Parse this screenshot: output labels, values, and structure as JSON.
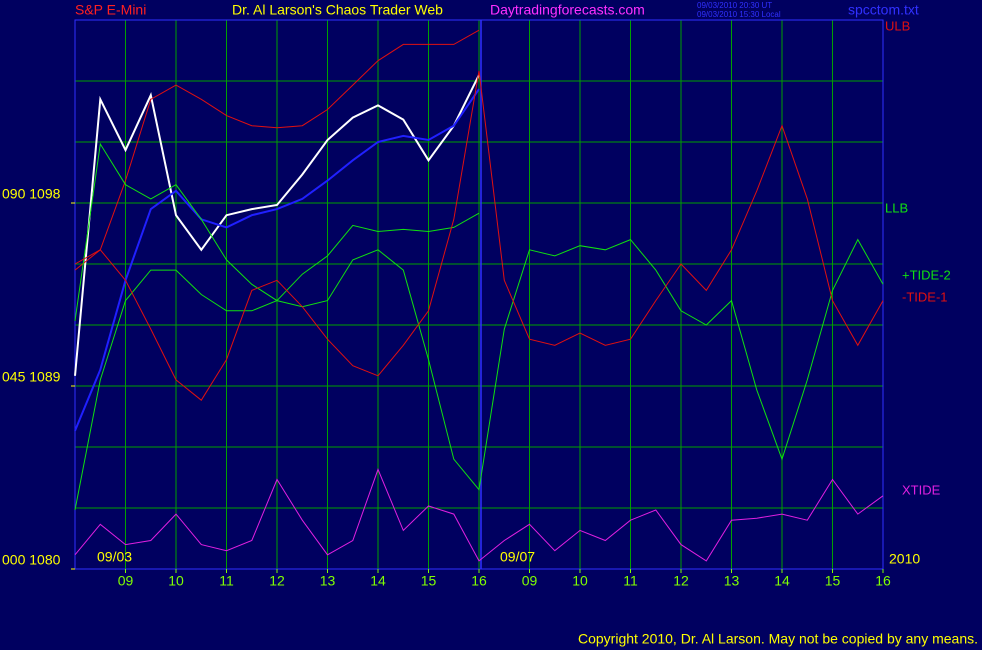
{
  "chart_data": {
    "type": "line",
    "symbol": "S&P E-Mini",
    "title": "Dr. Al Larson's Chaos Trader Web",
    "website": "Daytradingforecasts.com",
    "timestamps": [
      "09/03/2010 20:30 UT",
      "09/03/2010 15:30 Local"
    ],
    "file": "spcctom.txt",
    "copyright": "Copyright 2010, Dr. Al Larson. May not be copied by any means.",
    "annotations": [
      "09/03",
      "09/07",
      "2010"
    ],
    "xlim": [
      0,
      16
    ],
    "xticks": [
      {
        "value": 1,
        "label": "09"
      },
      {
        "value": 2,
        "label": "10"
      },
      {
        "value": 3,
        "label": "11"
      },
      {
        "value": 4,
        "label": "12"
      },
      {
        "value": 5,
        "label": "13"
      },
      {
        "value": 6,
        "label": "14"
      },
      {
        "value": 7,
        "label": "15"
      },
      {
        "value": 8,
        "label": "16"
      },
      {
        "value": 9,
        "label": "09"
      },
      {
        "value": 10,
        "label": "10"
      },
      {
        "value": 11,
        "label": "11"
      },
      {
        "value": 12,
        "label": "12"
      },
      {
        "value": 13,
        "label": "13"
      },
      {
        "value": 14,
        "label": "14"
      },
      {
        "value": 15,
        "label": "15"
      },
      {
        "value": 16,
        "label": "16"
      }
    ],
    "ylim": [
      1080,
      1107
    ],
    "yticks": [
      {
        "value": 1080,
        "label": "000 1080"
      },
      {
        "value": 1089,
        "label": "045 1089"
      },
      {
        "value": 1098,
        "label": "090 1098"
      }
    ],
    "grid": true,
    "xgrid": [
      0,
      1,
      2,
      3,
      4,
      5,
      6,
      7,
      8,
      9,
      10,
      11,
      12,
      13,
      14,
      15,
      16
    ],
    "ygrid": [
      1080,
      1083,
      1086,
      1089,
      1092,
      1095,
      1098,
      1101,
      1104,
      1107
    ],
    "series": [
      {
        "color": "#ffffff",
        "x": [
          0,
          0.5,
          1,
          1.5,
          2,
          2.5,
          3,
          3.5,
          4,
          4.5,
          5,
          5.5,
          6,
          6.5,
          7,
          7.5,
          8
        ],
        "values": [
          1089.5,
          1103.1,
          1100.6,
          1103.3,
          1097.4,
          1095.7,
          1097.4,
          1097.7,
          1097.9,
          1099.4,
          1101.1,
          1102.2,
          1102.8,
          1102.1,
          1100.1,
          1101.8,
          1104.3
        ]
      },
      {
        "color": "#2020ff",
        "x": [
          0,
          0.5,
          1,
          1.5,
          2,
          2.5,
          3,
          3.5,
          4,
          4.5,
          5,
          5.5,
          6,
          6.5,
          7,
          7.5,
          8
        ],
        "values": [
          1086.8,
          1089.8,
          1094.2,
          1097.7,
          1098.6,
          1097.2,
          1096.8,
          1097.4,
          1097.7,
          1098.2,
          1099.1,
          1100.1,
          1101.0,
          1101.3,
          1101.1,
          1101.8,
          1103.6
        ]
      },
      {
        "name": "ULB",
        "color": "#e01010",
        "x": [
          0,
          0.5,
          1,
          1.5,
          2,
          2.5,
          3,
          3.5,
          4,
          4.5,
          5,
          5.5,
          6,
          6.5,
          7,
          7.5,
          8
        ],
        "values": [
          1094.7,
          1095.7,
          1099.1,
          1103.1,
          1103.8,
          1103.1,
          1102.3,
          1101.8,
          1101.7,
          1101.8,
          1102.6,
          1103.8,
          1105.0,
          1105.8,
          1105.8,
          1105.8,
          1106.5
        ]
      },
      {
        "name": "LLB",
        "color": "#10e010",
        "x": [
          0,
          0.5,
          1,
          1.5,
          2,
          2.5,
          3,
          3.5,
          4,
          4.5,
          5,
          5.5,
          6,
          6.5,
          7,
          7.5,
          8
        ],
        "values": [
          1082.9,
          1089.3,
          1093.2,
          1094.7,
          1094.7,
          1093.5,
          1092.7,
          1092.7,
          1093.2,
          1094.5,
          1095.4,
          1096.9,
          1096.6,
          1096.7,
          1096.6,
          1096.8,
          1097.5
        ]
      },
      {
        "name": "+TIDE-2",
        "color": "#10e010",
        "x": [
          0,
          0.5,
          1,
          1.5,
          2,
          2.5,
          3,
          3.5,
          4,
          4.5,
          5,
          5.5,
          6,
          6.5,
          7,
          7.5,
          8,
          8.5,
          9,
          9.5,
          10,
          10.5,
          11,
          11.5,
          12,
          12.5,
          13,
          13.5,
          14,
          14.5,
          15,
          15.5,
          16
        ],
        "values": [
          1092.2,
          1100.9,
          1098.9,
          1098.2,
          1098.9,
          1097.2,
          1095.2,
          1094.0,
          1093.2,
          1092.9,
          1093.2,
          1095.2,
          1095.7,
          1094.7,
          1090.3,
          1085.4,
          1083.9,
          1091.8,
          1095.7,
          1095.4,
          1095.9,
          1095.7,
          1096.2,
          1094.7,
          1092.7,
          1092.0,
          1093.2,
          1088.8,
          1085.4,
          1089.3,
          1093.7,
          1096.2,
          1094.0
        ]
      },
      {
        "name": "-TIDE-1",
        "color": "#e01010",
        "x": [
          0,
          0.5,
          1,
          1.5,
          2,
          2.5,
          3,
          3.5,
          4,
          4.5,
          5,
          5.5,
          6,
          6.5,
          7,
          7.5,
          8,
          8.5,
          9,
          9.5,
          10,
          10.5,
          11,
          11.5,
          12,
          12.5,
          13,
          13.5,
          14,
          14.5,
          15,
          15.5,
          16
        ],
        "values": [
          1095.0,
          1095.7,
          1094.2,
          1091.8,
          1089.3,
          1088.3,
          1090.3,
          1093.7,
          1094.2,
          1092.9,
          1091.3,
          1090.0,
          1089.5,
          1091.0,
          1092.7,
          1097.2,
          1104.5,
          1094.2,
          1091.3,
          1091.0,
          1091.6,
          1091.0,
          1091.3,
          1093.2,
          1095.0,
          1093.7,
          1095.7,
          1098.6,
          1101.8,
          1098.2,
          1093.2,
          1091.0,
          1093.2
        ]
      },
      {
        "name": "XTIDE",
        "color": "#e020e0",
        "x": [
          0,
          0.5,
          1,
          1.5,
          2,
          2.5,
          3,
          3.5,
          4,
          4.5,
          5,
          5.5,
          6,
          6.5,
          7,
          7.5,
          8,
          8.5,
          9,
          9.5,
          10,
          10.5,
          11,
          11.5,
          12,
          12.5,
          13,
          13.5,
          14,
          14.5,
          15,
          15.5,
          16
        ],
        "values": [
          1080.7,
          1082.2,
          1081.2,
          1081.4,
          1082.7,
          1081.2,
          1080.9,
          1081.4,
          1084.4,
          1082.4,
          1080.7,
          1081.4,
          1084.9,
          1081.9,
          1083.1,
          1082.7,
          1080.4,
          1081.4,
          1082.2,
          1080.9,
          1081.9,
          1081.4,
          1082.4,
          1082.9,
          1081.2,
          1080.4,
          1082.4,
          1082.5,
          1082.7,
          1082.4,
          1084.4,
          1082.7,
          1083.6
        ]
      }
    ]
  }
}
